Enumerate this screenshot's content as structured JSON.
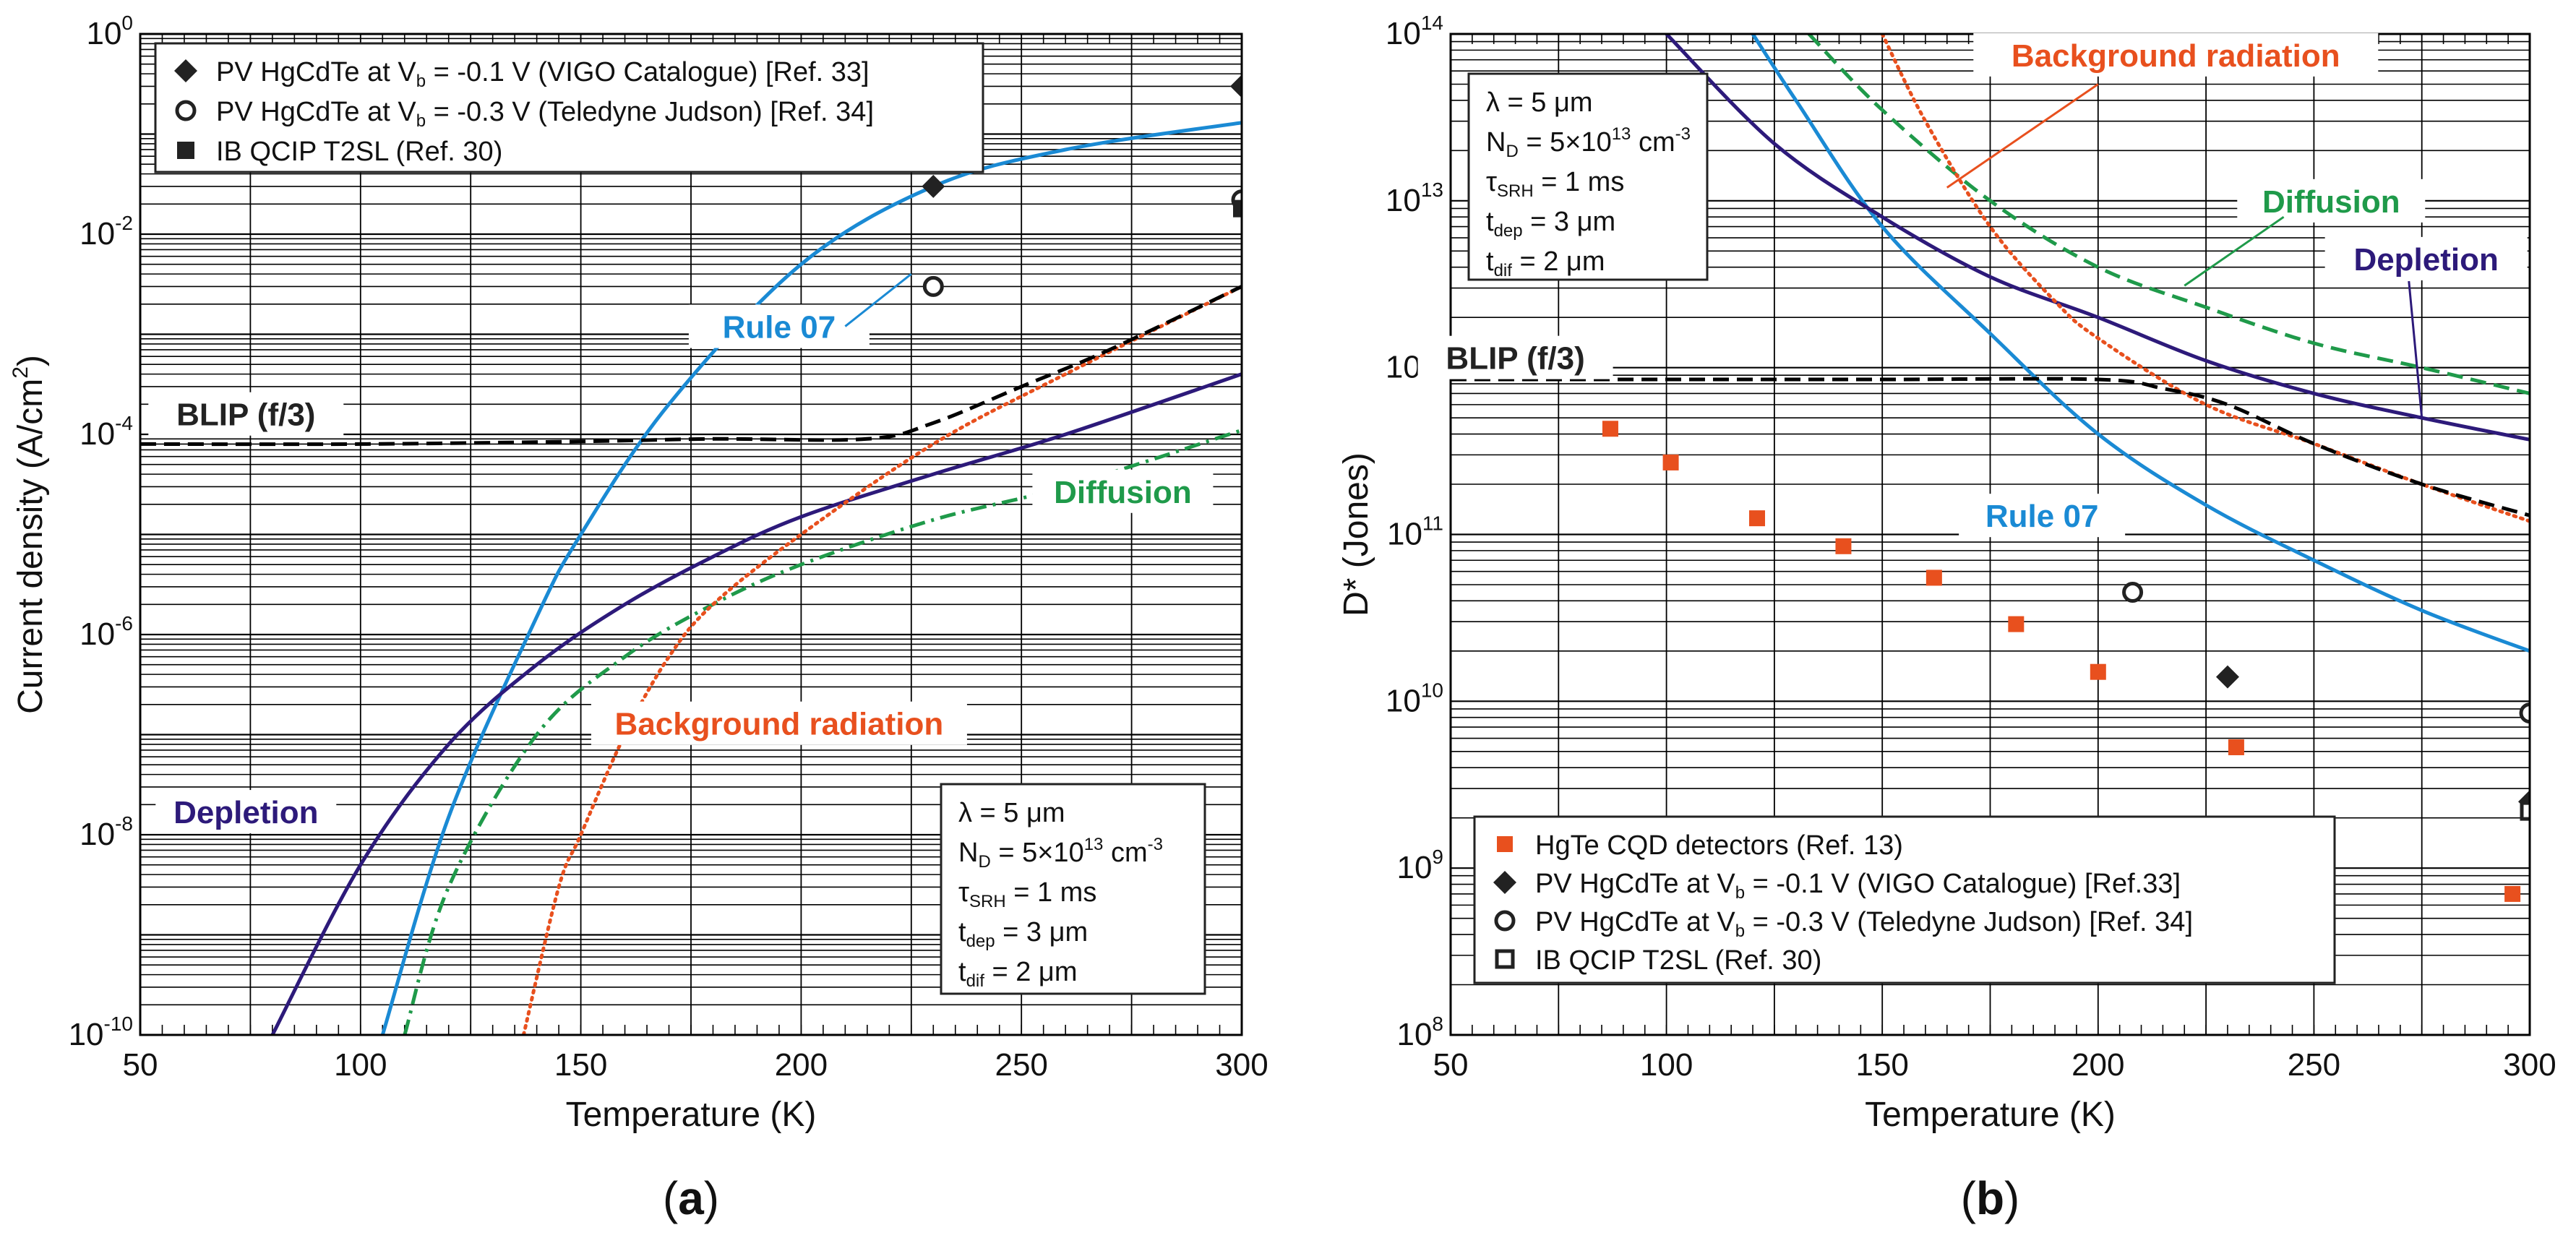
{
  "chart_data": [
    {
      "panel": "(a)",
      "panel_letter": "a",
      "type": "line",
      "xlabel": "Temperature (K)",
      "ylabel": "Current density (A/cm²)",
      "ylabel_parts": {
        "main": "Current density (A/cm",
        "sup": "2",
        "end": ")"
      },
      "xlim": [
        50,
        300
      ],
      "ylim_log10": [
        -10,
        0
      ],
      "y_scale": "log",
      "x_ticks": [
        50,
        100,
        150,
        200,
        250,
        300
      ],
      "y_ticks": [
        {
          "base": "10",
          "exp": "-10"
        },
        {
          "base": "10",
          "exp": "-8"
        },
        {
          "base": "10",
          "exp": "-6"
        },
        {
          "base": "10",
          "exp": "-4"
        },
        {
          "base": "10",
          "exp": "-2"
        },
        {
          "base": "10",
          "exp": "0"
        }
      ],
      "grid": true,
      "series": [
        {
          "name": "Rule 07",
          "color": "#1a8ad4",
          "style": "solid",
          "x": [
            105,
            120,
            140,
            150,
            170,
            200,
            230,
            260,
            300
          ],
          "y": [
            1e-10,
            1.5e-08,
            1.5e-06,
            1e-05,
            0.0002,
            0.005,
            0.03,
            0.07,
            0.13
          ]
        },
        {
          "name": "Depletion",
          "color": "#2d1a7a",
          "style": "solid",
          "x": [
            80,
            100,
            120,
            140,
            160,
            180,
            200,
            230,
            260,
            300
          ],
          "y": [
            1e-10,
            5e-09,
            8e-08,
            5e-07,
            2e-06,
            6e-06,
            1.5e-05,
            4e-05,
            0.0001,
            0.0004
          ]
        },
        {
          "name": "Diffusion",
          "color": "#1f9a4a",
          "style": "dash-dot",
          "x": [
            110,
            120,
            140,
            160,
            180,
            200,
            230,
            260,
            300
          ],
          "y": [
            1e-10,
            3e-09,
            1e-07,
            6e-07,
            2e-06,
            5e-06,
            1.4e-05,
            3e-05,
            0.00011
          ]
        },
        {
          "name": "Background radiation",
          "color": "#e8501e",
          "style": "dotted",
          "x": [
            137,
            145,
            150,
            160,
            170,
            180,
            200,
            230,
            260,
            300
          ],
          "y": [
            1e-10,
            3e-09,
            1e-08,
            1e-07,
            6e-07,
            2e-06,
            1e-05,
            8e-05,
            0.0004,
            0.003
          ]
        },
        {
          "name": "BLIP (f/3)",
          "color": "#000000",
          "style": "dashed",
          "x": [
            50,
            100,
            150,
            180,
            215,
            230,
            250,
            270,
            300
          ],
          "y": [
            8e-05,
            8e-05,
            8.5e-05,
            9e-05,
            9e-05,
            0.00013,
            0.0003,
            0.0007,
            0.003
          ]
        }
      ],
      "points": [
        {
          "label": "PV HgCdTe at Vb = -0.1 V (VIGO Catalogue) [Ref. 33]",
          "marker": "diamond",
          "data": [
            [
              230,
              0.03
            ],
            [
              300,
              0.3
            ]
          ]
        },
        {
          "label": "PV HgCdTe at Vb = -0.3 V (Teledyne Judson) [Ref. 34]",
          "marker": "circle",
          "data": [
            [
              230,
              0.003
            ],
            [
              300,
              0.022
            ]
          ]
        },
        {
          "label": "IB QCIP T2SL (Ref. 30)",
          "marker": "square-filled",
          "data": [
            [
              300,
              0.018
            ]
          ]
        }
      ],
      "legend": [
        {
          "parts": [
            "PV HgCdTe at V",
            "b",
            " = -0.1 V (VIGO Catalogue) [Ref. 33]"
          ],
          "marker": "diamond"
        },
        {
          "parts": [
            "PV HgCdTe at V",
            "b",
            " = -0.3 V (Teledyne Judson) [Ref. 34]"
          ],
          "marker": "circle"
        },
        {
          "parts": [
            "IB QCIP T2SL (Ref. 30)"
          ],
          "marker": "square-filled"
        }
      ],
      "legend_position": "top-left",
      "curve_labels": [
        {
          "text": "Rule 07",
          "color": "#1a8ad4",
          "at": [
            195,
            0.0012
          ]
        },
        {
          "text": "BLIP (f/3)",
          "color": "#222222",
          "at": [
            74,
            0.00016
          ]
        },
        {
          "text": "Diffusion",
          "color": "#1f9a4a",
          "at": [
            273,
            2.7e-05
          ]
        },
        {
          "text": "Background radiation",
          "color": "#e8501e",
          "at": [
            195,
            1.3e-07
          ]
        },
        {
          "text": "Depletion",
          "color": "#2d1a7a",
          "at": [
            74,
            1.7e-08
          ]
        }
      ],
      "parameters": {
        "position": "bottom-right",
        "lines": [
          {
            "sym": "λ",
            "sub": "",
            "val": " = 5  μm"
          },
          {
            "sym": "N",
            "sub": "D",
            "val": " = 5×10",
            "sup": "13",
            "tail": " cm",
            "sup2": "-3"
          },
          {
            "sym": "τ",
            "sub": "SRH",
            "val": " = 1 ms"
          },
          {
            "sym": "t",
            "sub": "dep",
            "val": " = 3  μm"
          },
          {
            "sym": "t",
            "sub": "dif",
            "val": " = 2  μm"
          }
        ]
      }
    },
    {
      "panel": "(b)",
      "panel_letter": "b",
      "type": "line",
      "xlabel": "Temperature (K)",
      "ylabel": "D* (Jones)",
      "xlim": [
        50,
        300
      ],
      "ylim_log10": [
        8,
        14
      ],
      "y_scale": "log",
      "x_ticks": [
        50,
        100,
        150,
        200,
        250,
        300
      ],
      "y_ticks": [
        {
          "base": "10",
          "exp": "8"
        },
        {
          "base": "10",
          "exp": "9"
        },
        {
          "base": "10",
          "exp": "10"
        },
        {
          "base": "10",
          "exp": "11"
        },
        {
          "base": "10",
          "exp": "12"
        },
        {
          "base": "10",
          "exp": "13"
        },
        {
          "base": "10",
          "exp": "14"
        }
      ],
      "grid": true,
      "series": [
        {
          "name": "Rule 07",
          "color": "#1a8ad4",
          "style": "solid",
          "x": [
            120,
            130,
            150,
            175,
            200,
            225,
            250,
            275,
            300
          ],
          "y": [
            100000000000000.0,
            40000000000000.0,
            7000000000000.0,
            1600000000000.0,
            400000000000.0,
            150000000000.0,
            70000000000.0,
            35000000000.0,
            20000000000.0
          ]
        },
        {
          "name": "Depletion",
          "color": "#2d1a7a",
          "style": "solid",
          "x": [
            100,
            125,
            150,
            175,
            200,
            225,
            250,
            275,
            300
          ],
          "y": [
            100000000000000.0,
            22000000000000.0,
            8000000000000.0,
            3500000000000.0,
            2000000000000.0,
            1100000000000.0,
            700000000000.0,
            500000000000.0,
            370000000000.0
          ]
        },
        {
          "name": "Diffusion",
          "color": "#1f9a4a",
          "style": "dashed",
          "x": [
            133,
            150,
            175,
            200,
            225,
            250,
            275,
            300
          ],
          "y": [
            100000000000000.0,
            35000000000000.0,
            10000000000000.0,
            4000000000000.0,
            2300000000000.0,
            1400000000000.0,
            1000000000000.0,
            700000000000.0
          ]
        },
        {
          "name": "Background radiation",
          "color": "#e8501e",
          "style": "dotted",
          "x": [
            150,
            160,
            175,
            190,
            200,
            225,
            250,
            275,
            300
          ],
          "y": [
            100000000000000.0,
            30000000000000.0,
            7000000000000.0,
            2500000000000.0,
            1500000000000.0,
            600000000000.0,
            350000000000.0,
            200000000000.0,
            120000000000.0
          ]
        },
        {
          "name": "BLIP (f/3)",
          "color": "#000000",
          "style": "dashed",
          "x": [
            50,
            100,
            150,
            200,
            215,
            230,
            250,
            275,
            300
          ],
          "y": [
            850000000000.0,
            850000000000.0,
            850000000000.0,
            850000000000.0,
            750000000000.0,
            600000000000.0,
            350000000000.0,
            200000000000.0,
            130000000000.0
          ]
        }
      ],
      "points": [
        {
          "label": "HgTe CQD detectors (Ref. 13)",
          "marker": "square-orange",
          "data": [
            [
              87,
              430000000000.0
            ],
            [
              101,
              270000000000.0
            ],
            [
              121,
              125000000000.0
            ],
            [
              141,
              85000000000.0
            ],
            [
              162,
              55000000000.0
            ],
            [
              181,
              29000000000.0
            ],
            [
              200,
              15000000000.0
            ],
            [
              232,
              5300000000.0
            ],
            [
              251,
              1800000000.0
            ],
            [
              296,
              700000000.0
            ]
          ]
        },
        {
          "label": "PV HgCdTe at Vb = -0.1 V (VIGO Catalogue) [Ref.33]",
          "marker": "diamond",
          "data": [
            [
              230,
              14000000000.0
            ],
            [
              300,
              2500000000.0
            ]
          ]
        },
        {
          "label": "PV HgCdTe at Vb = -0.3 V (Teledyne Judson) [Ref. 34]",
          "marker": "circle",
          "data": [
            [
              208,
              45000000000.0
            ],
            [
              300,
              8500000000.0
            ]
          ]
        },
        {
          "label": "IB QCIP T2SL (Ref. 30)",
          "marker": "square-open",
          "data": [
            [
              300,
              2200000000.0
            ]
          ]
        }
      ],
      "legend": [
        {
          "parts": [
            "HgTe CQD detectors (Ref. 13)"
          ],
          "marker": "square-orange"
        },
        {
          "parts": [
            "PV HgCdTe at V",
            "b",
            " = -0.1 V (VIGO Catalogue) [Ref.33]"
          ],
          "marker": "diamond"
        },
        {
          "parts": [
            "PV HgCdTe at V",
            "b",
            " = -0.3 V (Teledyne Judson) [Ref. 34]"
          ],
          "marker": "circle"
        },
        {
          "parts": [
            "IB QCIP T2SL (Ref. 30)"
          ],
          "marker": "square-open"
        }
      ],
      "legend_position": "bottom-center",
      "curve_labels": [
        {
          "text": "Background radiation",
          "color": "#e8501e",
          "at": [
            218,
            75000000000000.0
          ]
        },
        {
          "text": "Diffusion",
          "color": "#1f9a4a",
          "at": [
            254,
            10000000000000.0
          ]
        },
        {
          "text": "Depletion",
          "color": "#2d1a7a",
          "at": [
            276,
            4500000000000.0
          ]
        },
        {
          "text": "BLIP (f/3)",
          "color": "#222222",
          "at": [
            65,
            1150000000000.0
          ]
        },
        {
          "text": "Rule 07",
          "color": "#1a8ad4",
          "at": [
            187,
            130000000000.0
          ]
        }
      ],
      "parameters": {
        "position": "top-left",
        "lines": [
          {
            "sym": "λ",
            "sub": "",
            "val": " = 5  μm"
          },
          {
            "sym": "N",
            "sub": "D",
            "val": " = 5×10",
            "sup": "13",
            "tail": " cm",
            "sup2": "-3"
          },
          {
            "sym": "τ",
            "sub": "SRH",
            "val": " = 1 ms"
          },
          {
            "sym": "t",
            "sub": "dep",
            "val": " = 3  μm"
          },
          {
            "sym": "t",
            "sub": "dif",
            "val": " = 2  μm"
          }
        ]
      }
    }
  ]
}
